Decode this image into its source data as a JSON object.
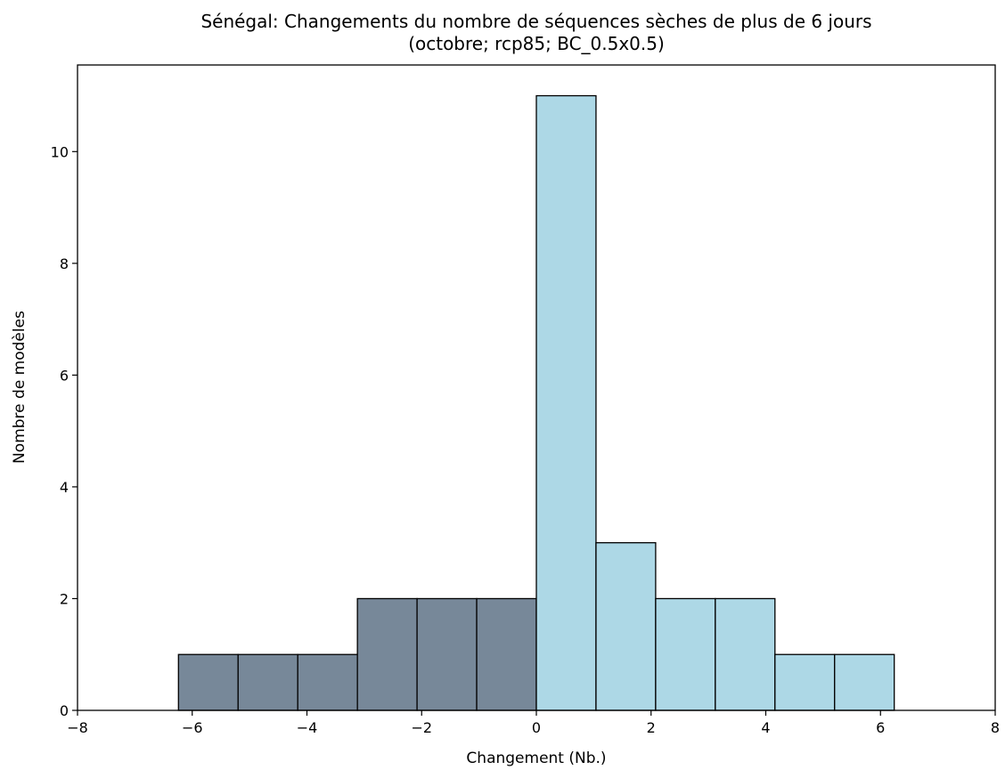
{
  "chart_data": {
    "type": "bar",
    "title": "Sénégal: Changements du nombre de séquences sèches de plus de 6 jours",
    "subtitle": "(octobre; rcp85; BC_0.5x0.5)",
    "xlabel": "Changement (Nb.)",
    "ylabel": "Nombre de modèles",
    "xlim": [
      -8,
      8
    ],
    "ylim": [
      0,
      11.55
    ],
    "x_ticks": [
      -8,
      -6,
      -4,
      -2,
      0,
      2,
      4,
      6,
      8
    ],
    "x_tick_labels": [
      "−8",
      "−6",
      "−4",
      "−2",
      "0",
      "2",
      "4",
      "6",
      "8"
    ],
    "y_ticks": [
      0,
      2,
      4,
      6,
      8,
      10
    ],
    "y_tick_labels": [
      "0",
      "2",
      "4",
      "6",
      "8",
      "10"
    ],
    "bins": [
      {
        "x0": -6.24,
        "x1": -5.2,
        "value": 1,
        "color": "#778899"
      },
      {
        "x0": -5.2,
        "x1": -4.16,
        "value": 1,
        "color": "#778899"
      },
      {
        "x0": -4.16,
        "x1": -3.12,
        "value": 1,
        "color": "#778899"
      },
      {
        "x0": -3.12,
        "x1": -2.08,
        "value": 2,
        "color": "#778899"
      },
      {
        "x0": -2.08,
        "x1": -1.04,
        "value": 2,
        "color": "#778899"
      },
      {
        "x0": -1.04,
        "x1": 0,
        "value": 2,
        "color": "#778899"
      },
      {
        "x0": 0,
        "x1": 1.04,
        "value": 11,
        "color": "#add8e6"
      },
      {
        "x0": 1.04,
        "x1": 2.08,
        "value": 3,
        "color": "#add8e6"
      },
      {
        "x0": 2.08,
        "x1": 3.12,
        "value": 2,
        "color": "#add8e6"
      },
      {
        "x0": 3.12,
        "x1": 4.16,
        "value": 2,
        "color": "#add8e6"
      },
      {
        "x0": 4.16,
        "x1": 5.2,
        "value": 1,
        "color": "#add8e6"
      },
      {
        "x0": 5.2,
        "x1": 6.24,
        "value": 1,
        "color": "#add8e6"
      }
    ],
    "grid": false,
    "legend": false
  }
}
